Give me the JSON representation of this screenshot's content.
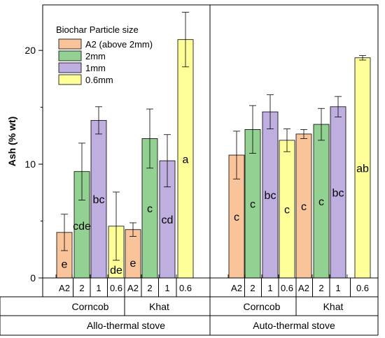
{
  "chart_data": {
    "type": "bar",
    "ylabel": "Ash (% wt)",
    "ylim": [
      0,
      24
    ],
    "yticks": [
      0,
      10,
      20
    ],
    "legend": {
      "title": "Biochar Particle size",
      "position": "top-left",
      "entries": [
        "A2 (above 2mm)",
        "2mm",
        "1mm",
        "0.6mm"
      ]
    },
    "colors": {
      "A2": "#f9c49a",
      "2mm": "#92d192",
      "1mm": "#bfaee0",
      "0.6mm": "#ffff99"
    },
    "panels": [
      {
        "stove": "Allo-thermal stove",
        "groups": [
          {
            "name": "Corncob",
            "bars": [
              {
                "cat": "A2",
                "series": "A2",
                "value": 4.0,
                "err": 1.6,
                "letter": "e"
              },
              {
                "cat": "2",
                "series": "2mm",
                "value": 9.35,
                "err": 2.5,
                "letter": "cde"
              },
              {
                "cat": "1",
                "series": "1mm",
                "value": 13.85,
                "err": 1.2,
                "letter": "bc"
              },
              {
                "cat": "0.6",
                "series": "0.6mm",
                "value": 4.55,
                "err": 3.0,
                "letter": "de"
              }
            ]
          },
          {
            "name": "Khat",
            "bars": [
              {
                "cat": "A2",
                "series": "A2",
                "value": 4.25,
                "err": 0.6,
                "letter": "e"
              },
              {
                "cat": "2",
                "series": "2mm",
                "value": 12.25,
                "err": 2.6,
                "letter": "c"
              },
              {
                "cat": "1",
                "series": "1mm",
                "value": 10.3,
                "err": 2.3,
                "letter": "cd"
              },
              {
                "cat": "0.6",
                "series": "0.6mm",
                "value": 20.95,
                "err": 2.4,
                "letter": "a"
              }
            ]
          }
        ]
      },
      {
        "stove": "Auto-thermal stove",
        "groups": [
          {
            "name": "Corncob",
            "bars": [
              {
                "cat": "A2",
                "series": "A2",
                "value": 10.8,
                "err": 2.1,
                "letter": "c"
              },
              {
                "cat": "2",
                "series": "2mm",
                "value": 13.05,
                "err": 2.1,
                "letter": "c"
              },
              {
                "cat": "1",
                "series": "1mm",
                "value": 14.6,
                "err": 1.5,
                "letter": "bc"
              },
              {
                "cat": "0.6",
                "series": "0.6mm",
                "value": 12.1,
                "err": 1.0,
                "letter": "c"
              }
            ]
          },
          {
            "name": "Khat",
            "bars": [
              {
                "cat": "A2",
                "series": "A2",
                "value": 12.65,
                "err": 0.4,
                "letter": "c"
              },
              {
                "cat": "2",
                "series": "2mm",
                "value": 13.5,
                "err": 1.4,
                "letter": "c"
              },
              {
                "cat": "1",
                "series": "1mm",
                "value": 15.05,
                "err": 0.9,
                "letter": "bc"
              },
              {
                "cat": "0.6",
                "series": "0.6mm",
                "value": 19.35,
                "err": 0.2,
                "letter": "ab"
              }
            ]
          }
        ]
      }
    ]
  }
}
